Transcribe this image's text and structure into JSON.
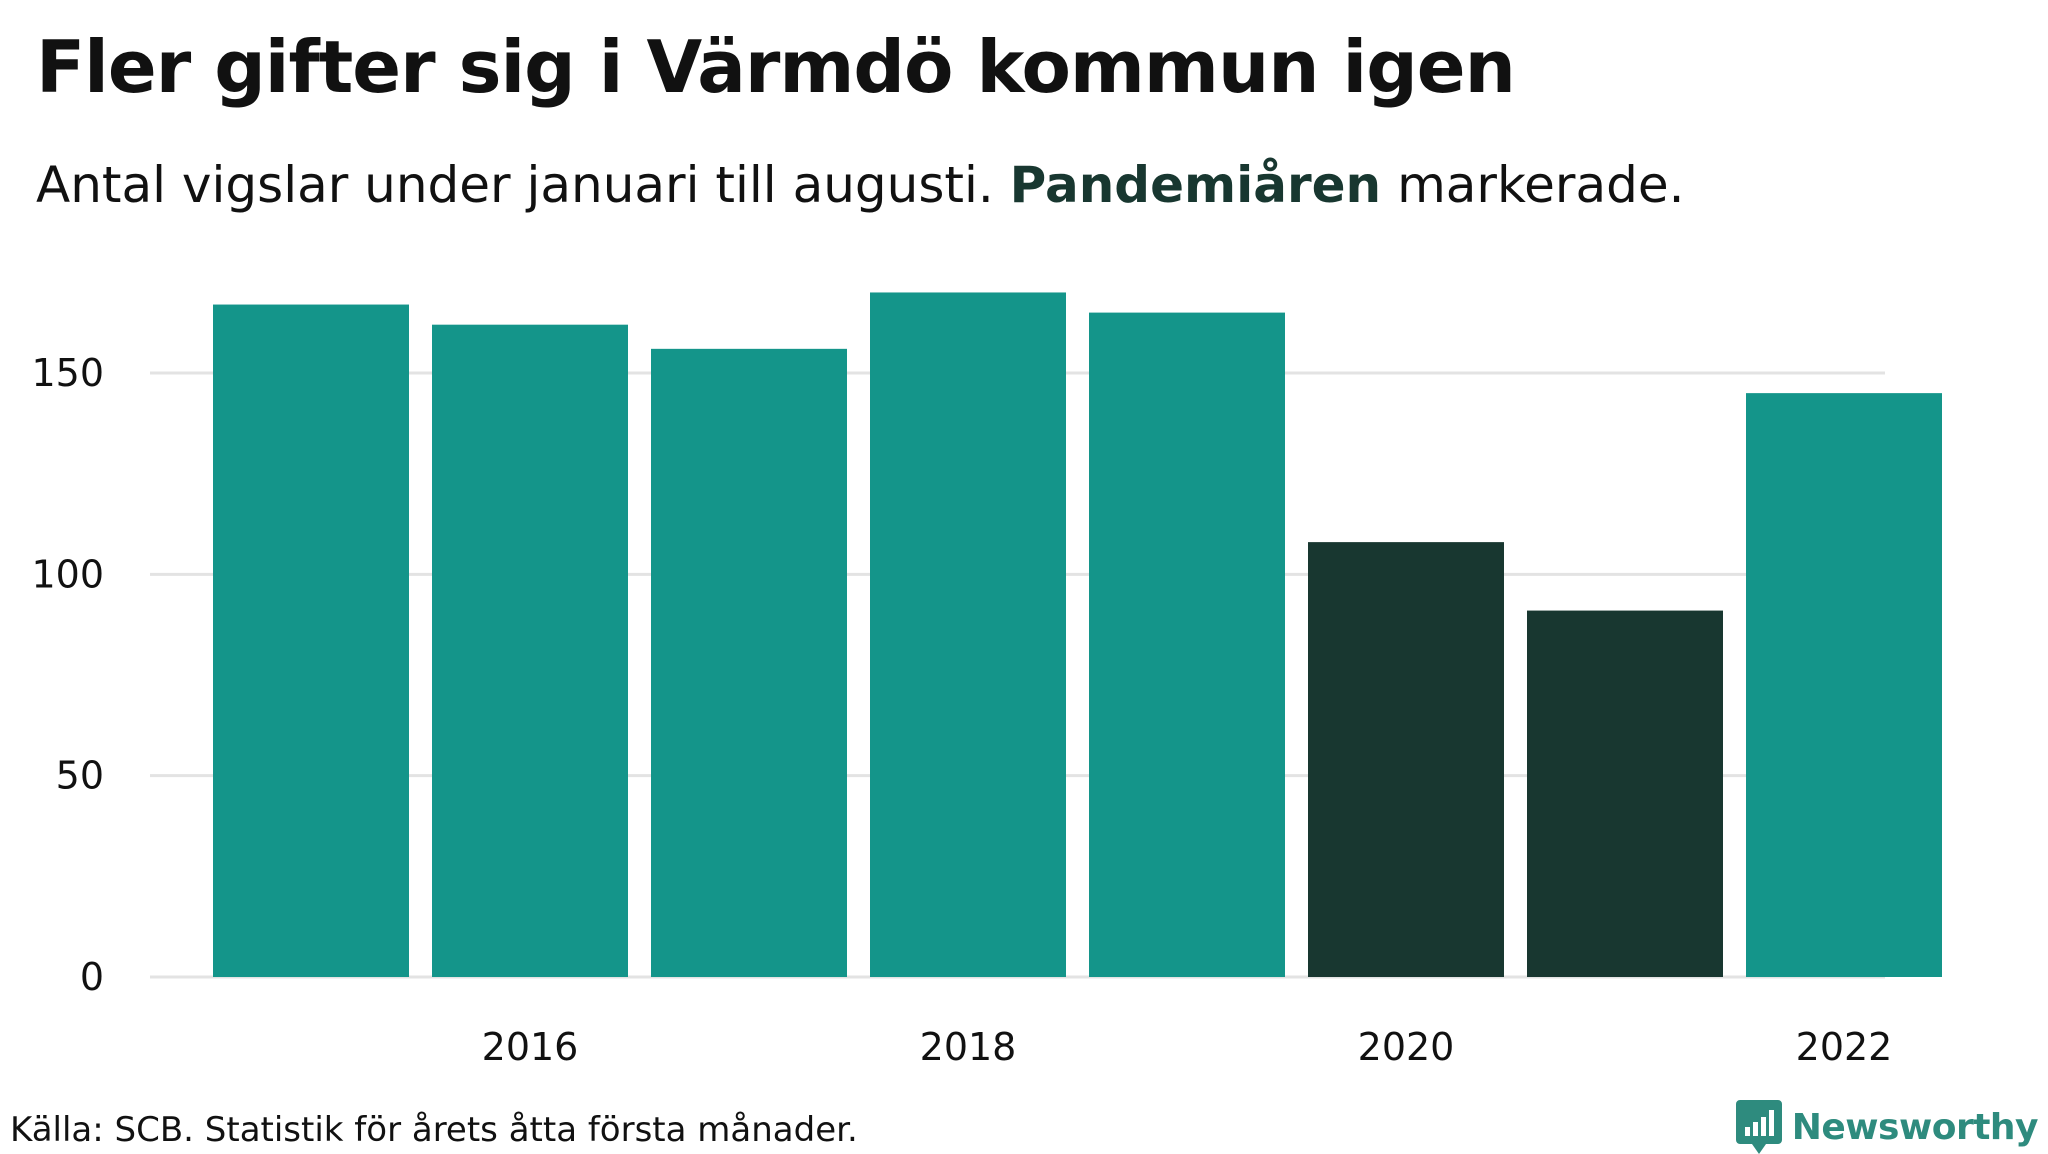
{
  "header": {
    "title": "Fler gifter sig i Värmdö kommun igen",
    "subtitle_before": "Antal vigslar under januari till augusti.",
    "subtitle_highlight": "Pandemiåren",
    "subtitle_after": "markerade."
  },
  "footer": {
    "source": "Källa: SCB. Statistik för årets åtta första månader.",
    "brand": "Newsworthy"
  },
  "colors": {
    "normal_bar": "#14958A",
    "pandemic_bar": "#183730",
    "gridline": "#E3E3E3",
    "brand": "#2E8B7E"
  },
  "chart_data": {
    "type": "bar",
    "title": "Fler gifter sig i Värmdö kommun igen",
    "subtitle": "Antal vigslar under januari till augusti. Pandemiåren markerade.",
    "xlabel": "",
    "ylabel": "",
    "categories": [
      "2015",
      "2016",
      "2017",
      "2018",
      "2019",
      "2020",
      "2021",
      "2022"
    ],
    "values": [
      167,
      162,
      156,
      170,
      165,
      108,
      91,
      145
    ],
    "highlighted": [
      false,
      false,
      false,
      false,
      false,
      true,
      true,
      false
    ],
    "highlight_label": "Pandemiåren",
    "x_tick_labels": [
      "2016",
      "2018",
      "2020",
      "2022"
    ],
    "y_ticks": [
      0,
      50,
      100,
      150
    ],
    "ylim": [
      0,
      170
    ],
    "grid": true,
    "legend": "none"
  }
}
